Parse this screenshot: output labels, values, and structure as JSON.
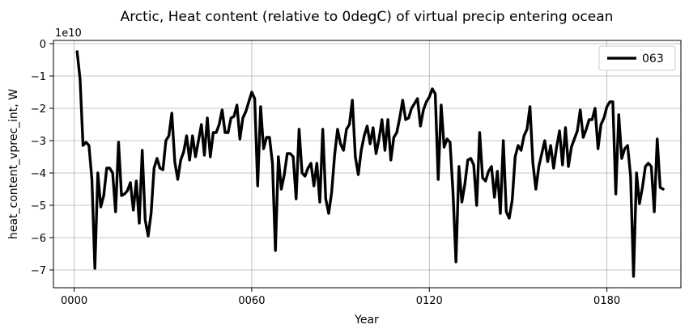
{
  "chart_data": {
    "type": "line",
    "title": "Arctic, Heat content (relative to 0degC) of virtual precip entering ocean",
    "xlabel": "Year",
    "ylabel": "heat_content_vprec_int, W",
    "y_offset_label": "1e10",
    "xlim": [
      -7,
      205
    ],
    "ylim": [
      -7.55,
      0.1
    ],
    "x_ticks": [
      0,
      60,
      120,
      180
    ],
    "x_tick_labels": [
      "0000",
      "0060",
      "0120",
      "0180"
    ],
    "y_ticks": [
      0,
      -1,
      -2,
      -3,
      -4,
      -5,
      -6,
      -7
    ],
    "y_tick_labels": [
      "0",
      "−1",
      "−2",
      "−3",
      "−4",
      "−5",
      "−6",
      "−7"
    ],
    "grid": true,
    "legend_position": "top-right",
    "series": [
      {
        "name": "063",
        "color": "#000000",
        "x_start": 1,
        "x_step": 1,
        "values": [
          -0.25,
          -1.1,
          -3.15,
          -3.05,
          -3.15,
          -4.2,
          -6.95,
          -4.0,
          -5.05,
          -4.7,
          -3.85,
          -3.85,
          -4.0,
          -5.2,
          -3.05,
          -4.7,
          -4.65,
          -4.55,
          -4.3,
          -5.15,
          -4.25,
          -5.55,
          -3.3,
          -5.45,
          -5.95,
          -5.25,
          -3.85,
          -3.55,
          -3.85,
          -3.9,
          -3.0,
          -2.85,
          -2.15,
          -3.65,
          -4.2,
          -3.6,
          -3.35,
          -2.85,
          -3.6,
          -2.85,
          -3.5,
          -3.0,
          -2.5,
          -3.45,
          -2.3,
          -3.5,
          -2.75,
          -2.75,
          -2.5,
          -2.05,
          -2.75,
          -2.75,
          -2.3,
          -2.25,
          -1.9,
          -2.95,
          -2.3,
          -2.1,
          -1.8,
          -1.5,
          -1.7,
          -4.4,
          -1.95,
          -3.25,
          -2.9,
          -2.9,
          -3.7,
          -6.4,
          -3.5,
          -4.5,
          -4.05,
          -3.4,
          -3.4,
          -3.5,
          -4.8,
          -2.65,
          -4.0,
          -4.1,
          -3.85,
          -3.7,
          -4.4,
          -3.7,
          -4.9,
          -2.65,
          -4.8,
          -5.25,
          -4.6,
          -3.45,
          -2.65,
          -3.1,
          -3.3,
          -2.65,
          -2.5,
          -1.75,
          -3.5,
          -4.05,
          -3.3,
          -2.85,
          -2.55,
          -3.1,
          -2.6,
          -3.4,
          -2.95,
          -2.35,
          -3.3,
          -2.35,
          -3.6,
          -2.9,
          -2.75,
          -2.3,
          -1.75,
          -2.35,
          -2.3,
          -2.0,
          -1.85,
          -1.7,
          -2.55,
          -2.05,
          -1.8,
          -1.65,
          -1.4,
          -1.55,
          -4.2,
          -1.9,
          -3.2,
          -2.95,
          -3.05,
          -4.6,
          -6.75,
          -3.8,
          -4.9,
          -4.35,
          -3.6,
          -3.55,
          -3.75,
          -5.0,
          -2.75,
          -4.15,
          -4.25,
          -3.95,
          -3.8,
          -4.75,
          -3.95,
          -5.25,
          -3.0,
          -5.2,
          -5.4,
          -4.85,
          -3.5,
          -3.15,
          -3.3,
          -2.85,
          -2.65,
          -1.95,
          -3.7,
          -4.5,
          -3.8,
          -3.4,
          -3.0,
          -3.65,
          -3.15,
          -3.85,
          -3.2,
          -2.7,
          -3.75,
          -2.6,
          -3.8,
          -3.2,
          -2.95,
          -2.7,
          -2.05,
          -2.9,
          -2.65,
          -2.35,
          -2.35,
          -2.0,
          -3.25,
          -2.5,
          -2.3,
          -1.95,
          -1.8,
          -1.8,
          -4.65,
          -2.2,
          -3.55,
          -3.25,
          -3.15,
          -4.1,
          -7.2,
          -4.0,
          -4.95,
          -4.45,
          -3.8,
          -3.7,
          -3.8,
          -5.2,
          -2.95,
          -4.45,
          -4.5
        ]
      }
    ]
  }
}
